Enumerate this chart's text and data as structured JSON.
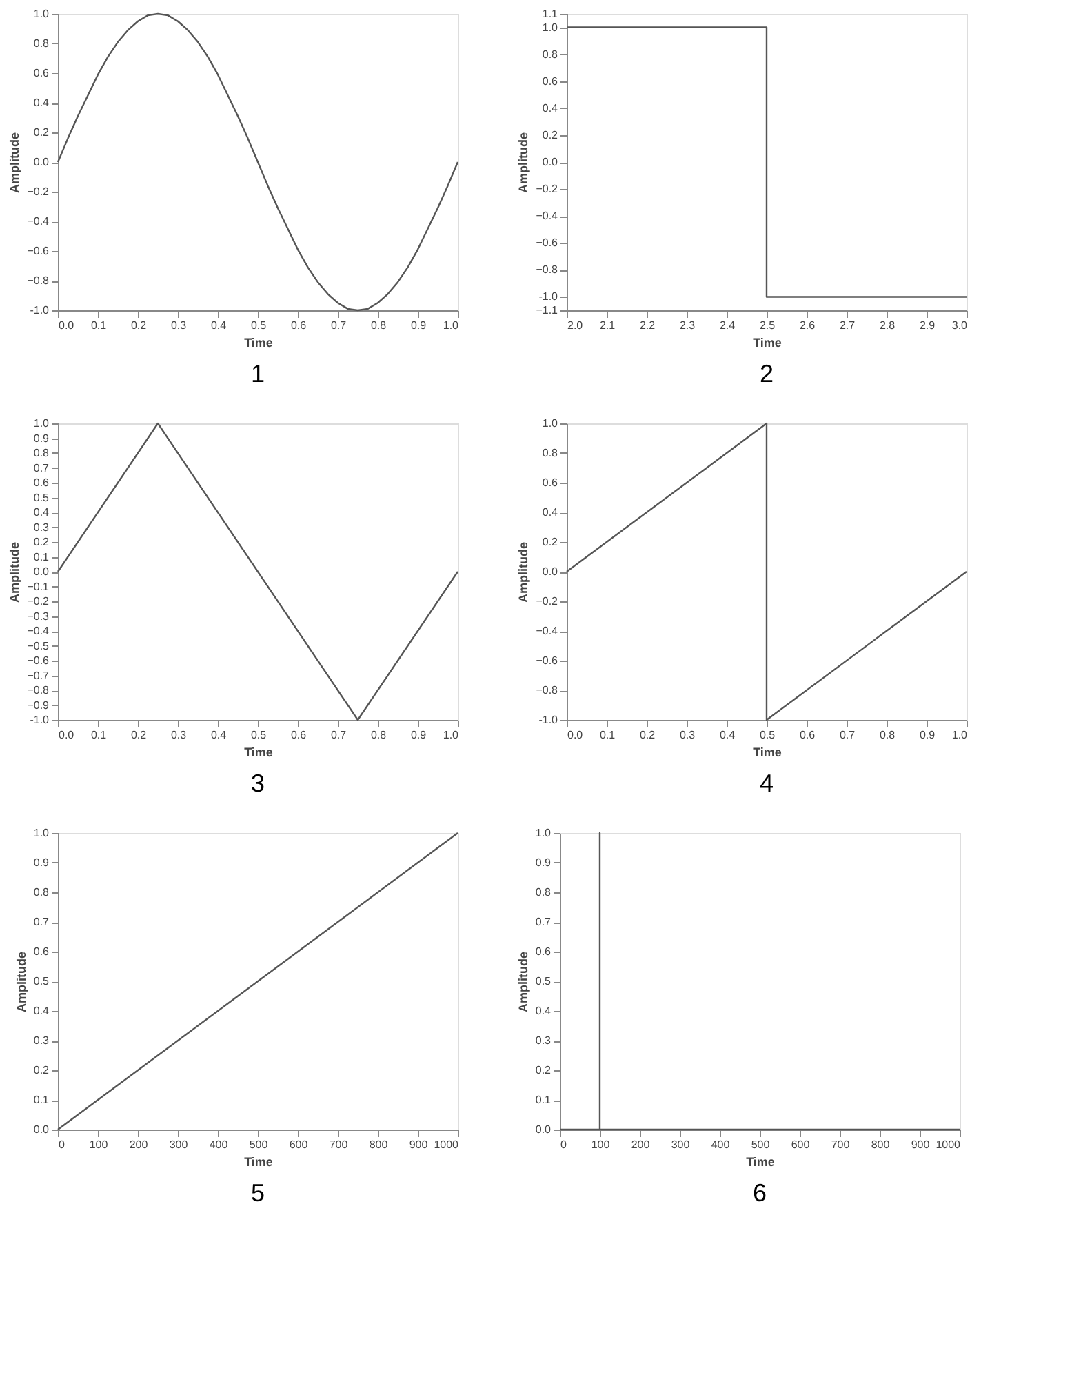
{
  "chart_data": [
    {
      "type": "line",
      "title": "1",
      "xlabel": "Time",
      "ylabel": "Amplitude",
      "xlim": [
        0,
        1
      ],
      "ylim": [
        -1,
        1
      ],
      "xticks": [
        {
          "value": 0,
          "label": "0.0"
        },
        0.1,
        0.2,
        0.3,
        0.4,
        0.5,
        0.6,
        0.7,
        0.8,
        0.9,
        {
          "value": 1,
          "label": "1.0"
        }
      ],
      "yticks": [
        {
          "value": -1,
          "label": "-1.0"
        },
        -0.8,
        -0.6,
        -0.4,
        -0.2,
        {
          "value": 0,
          "label": "0.0"
        },
        0.2,
        0.4,
        0.6,
        0.8,
        {
          "value": 1,
          "label": "1.0"
        }
      ],
      "x": [
        0,
        0.025,
        0.05,
        0.075,
        0.1,
        0.125,
        0.15,
        0.175,
        0.2,
        0.225,
        0.25,
        0.275,
        0.3,
        0.325,
        0.35,
        0.375,
        0.4,
        0.425,
        0.45,
        0.475,
        0.5,
        0.525,
        0.55,
        0.575,
        0.6,
        0.625,
        0.65,
        0.675,
        0.7,
        0.725,
        0.75,
        0.775,
        0.8,
        0.825,
        0.85,
        0.875,
        0.9,
        0.925,
        0.95,
        0.975,
        1
      ],
      "series": [
        {
          "color": "#555555",
          "values": [
            0,
            0.16,
            0.31,
            0.45,
            0.59,
            0.71,
            0.81,
            0.89,
            0.95,
            0.99,
            1,
            0.99,
            0.95,
            0.89,
            0.81,
            0.71,
            0.59,
            0.45,
            0.31,
            0.16,
            0,
            -0.16,
            -0.31,
            -0.45,
            -0.59,
            -0.71,
            -0.81,
            -0.89,
            -0.95,
            -0.99,
            -1,
            -0.99,
            -0.95,
            -0.89,
            -0.81,
            -0.71,
            -0.59,
            -0.45,
            -0.31,
            -0.16,
            0
          ]
        }
      ]
    },
    {
      "type": "line",
      "title": "2",
      "xlabel": "Time",
      "ylabel": "Amplitude",
      "xlim": [
        2,
        3
      ],
      "ylim": [
        -1.1,
        1.1
      ],
      "xticks": [
        {
          "value": 2,
          "label": "2.0"
        },
        2.1,
        2.2,
        2.3,
        2.4,
        2.5,
        2.6,
        2.7,
        2.8,
        2.9,
        {
          "value": 3,
          "label": "3.0"
        }
      ],
      "yticks": [
        -1.1,
        {
          "value": -1,
          "label": "-1.0"
        },
        -0.8,
        -0.6,
        -0.4,
        -0.2,
        {
          "value": 0,
          "label": "0.0"
        },
        0.2,
        0.4,
        0.6,
        0.8,
        {
          "value": 1,
          "label": "1.0"
        },
        1.1
      ],
      "x": [
        2,
        2.5,
        2.5,
        3
      ],
      "series": [
        {
          "color": "#555555",
          "values": [
            1,
            1,
            -1,
            -1
          ]
        }
      ]
    },
    {
      "type": "line",
      "title": "3",
      "xlabel": "Time",
      "ylabel": "Amplitude",
      "xlim": [
        0,
        1
      ],
      "ylim": [
        -1,
        1
      ],
      "xticks": [
        {
          "value": 0,
          "label": "0.0"
        },
        0.1,
        0.2,
        0.3,
        0.4,
        0.5,
        0.6,
        0.7,
        0.8,
        0.9,
        {
          "value": 1,
          "label": "1.0"
        }
      ],
      "yticks": [
        {
          "value": -1,
          "label": "-1.0"
        },
        -0.9,
        -0.8,
        -0.7,
        -0.6,
        -0.5,
        -0.4,
        -0.3,
        -0.2,
        -0.1,
        {
          "value": 0,
          "label": "0.0"
        },
        0.1,
        0.2,
        0.3,
        0.4,
        0.5,
        0.6,
        0.7,
        0.8,
        0.9,
        {
          "value": 1,
          "label": "1.0"
        }
      ],
      "x": [
        0,
        0.25,
        0.75,
        1
      ],
      "series": [
        {
          "color": "#555555",
          "values": [
            0,
            1,
            -1,
            0
          ]
        }
      ]
    },
    {
      "type": "line",
      "title": "4",
      "xlabel": "Time",
      "ylabel": "Amplitude",
      "xlim": [
        0,
        1
      ],
      "ylim": [
        -1,
        1
      ],
      "xticks": [
        {
          "value": 0,
          "label": "0.0"
        },
        0.1,
        0.2,
        0.3,
        0.4,
        0.5,
        0.6,
        0.7,
        0.8,
        0.9,
        {
          "value": 1,
          "label": "1.0"
        }
      ],
      "yticks": [
        {
          "value": -1,
          "label": "-1.0"
        },
        -0.8,
        -0.6,
        -0.4,
        -0.2,
        {
          "value": 0,
          "label": "0.0"
        },
        0.2,
        0.4,
        0.6,
        0.8,
        {
          "value": 1,
          "label": "1.0"
        }
      ],
      "x": [
        0,
        0.5,
        0.5,
        1
      ],
      "series": [
        {
          "color": "#555555",
          "values": [
            0,
            1,
            -1,
            0
          ]
        }
      ]
    },
    {
      "type": "line",
      "title": "5",
      "xlabel": "Time",
      "ylabel": "Amplitude",
      "xlim": [
        0,
        1000
      ],
      "ylim": [
        0,
        1
      ],
      "xticks": [
        0,
        100,
        200,
        300,
        400,
        500,
        600,
        700,
        800,
        900,
        1000
      ],
      "yticks": [
        {
          "value": 0,
          "label": "0.0"
        },
        0.1,
        0.2,
        0.3,
        0.4,
        0.5,
        0.6,
        0.7,
        0.8,
        0.9,
        {
          "value": 1,
          "label": "1.0"
        }
      ],
      "x": [
        0,
        1000
      ],
      "series": [
        {
          "color": "#555555",
          "values": [
            0,
            1
          ]
        }
      ]
    },
    {
      "type": "line",
      "title": "6",
      "xlabel": "Time",
      "ylabel": "Amplitude",
      "xlim": [
        0,
        1000
      ],
      "ylim": [
        0,
        1
      ],
      "xticks": [
        0,
        100,
        200,
        300,
        400,
        500,
        600,
        700,
        800,
        900,
        1000
      ],
      "yticks": [
        {
          "value": 0,
          "label": "0.0"
        },
        0.1,
        0.2,
        0.3,
        0.4,
        0.5,
        0.6,
        0.7,
        0.8,
        0.9,
        {
          "value": 1,
          "label": "1.0"
        }
      ],
      "x": [
        0,
        100,
        100,
        100,
        1000
      ],
      "series": [
        {
          "color": "#555555",
          "values": [
            0,
            0,
            1,
            0,
            0
          ]
        }
      ]
    }
  ]
}
